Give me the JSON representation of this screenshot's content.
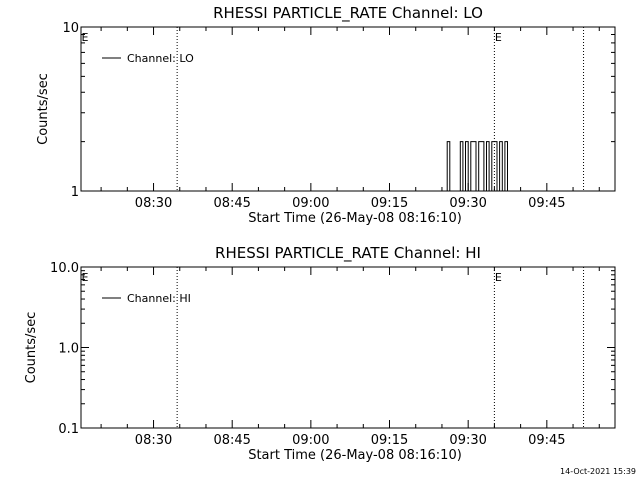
{
  "chart_data": [
    {
      "type": "line",
      "title": "RHESSI PARTICLE_RATE Channel: LO",
      "xlabel": "Start Time (26-May-08 08:16:10)",
      "ylabel": "Counts/sec",
      "xlim": [
        "08:16:10",
        "09:58:00"
      ],
      "x_ticks": [
        "08:30",
        "08:45",
        "09:00",
        "09:15",
        "09:30",
        "09:45"
      ],
      "y_scale": "log",
      "ylim": [
        1,
        10
      ],
      "y_ticks": [
        "1",
        "10"
      ],
      "legend": {
        "entries": [
          "Channel: LO"
        ],
        "position": "top-left"
      },
      "markers": [
        {
          "time": "08:16:10",
          "label": "E"
        },
        {
          "time": "09:35:00",
          "label": "E"
        }
      ],
      "dotted_lines": [
        "08:34:30",
        "09:35:00",
        "09:52:00"
      ],
      "series": [
        {
          "name": "Channel: LO",
          "x": [
            "09:25:30",
            "09:26:00",
            "09:26:30",
            "09:27:00",
            "09:28:00",
            "09:28:30",
            "09:29:00",
            "09:29:30",
            "09:30:00",
            "09:30:30",
            "09:31:00",
            "09:31:30",
            "09:32:00",
            "09:32:30",
            "09:33:00",
            "09:33:30",
            "09:34:00",
            "09:34:30",
            "09:35:00",
            "09:35:30",
            "09:36:00",
            "09:36:30",
            "09:37:00",
            "09:37:30"
          ],
          "values": [
            1,
            2,
            1,
            1,
            1,
            2,
            1,
            2,
            1,
            2,
            2,
            1,
            2,
            2,
            1,
            2,
            1,
            2,
            2,
            1,
            2,
            1,
            2,
            1
          ]
        }
      ]
    },
    {
      "type": "line",
      "title": "RHESSI PARTICLE_RATE Channel: HI",
      "xlabel": "Start Time (26-May-08 08:16:10)",
      "ylabel": "Counts/sec",
      "xlim": [
        "08:16:10",
        "09:58:00"
      ],
      "x_ticks": [
        "08:30",
        "08:45",
        "09:00",
        "09:15",
        "09:30",
        "09:45"
      ],
      "y_scale": "log",
      "ylim": [
        0.1,
        10
      ],
      "y_ticks": [
        "0.1",
        "1.0",
        "10.0"
      ],
      "legend": {
        "entries": [
          "Channel: HI"
        ],
        "position": "top-left"
      },
      "markers": [
        {
          "time": "08:16:10",
          "label": "E"
        },
        {
          "time": "09:35:00",
          "label": "E"
        }
      ],
      "dotted_lines": [
        "08:34:30",
        "09:35:00",
        "09:52:00"
      ],
      "series": [
        {
          "name": "Channel: HI",
          "x": [],
          "values": []
        }
      ]
    }
  ],
  "footer": {
    "timestamp": "14-Oct-2021 15:39"
  },
  "colors": {
    "line": "#000000",
    "background": "#ffffff"
  }
}
